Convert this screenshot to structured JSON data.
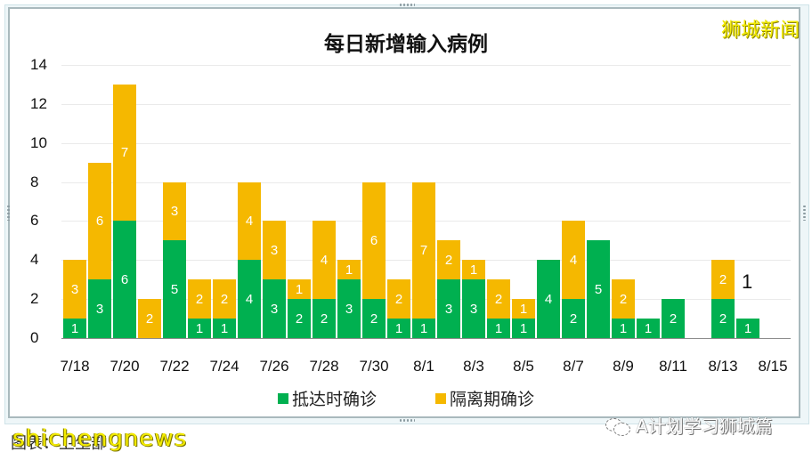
{
  "title": "每日新增输入病例",
  "brand_watermark": "狮城新闻",
  "caption": "图表：卫生部",
  "watermark_en": "shichengnews",
  "watermark_wechat": "A计划学习狮城篇",
  "legend": [
    {
      "label": "抵达时确诊",
      "color": "#00b050"
    },
    {
      "label": "隔离期确诊",
      "color": "#f5b800"
    }
  ],
  "colors": {
    "green": "#00b050",
    "yellow": "#f5b800"
  },
  "chart_data": {
    "type": "bar",
    "stacked": true,
    "title": "每日新增输入病例",
    "xlabel": "",
    "ylabel": "",
    "ylim": [
      0,
      14
    ],
    "yticks": [
      0,
      2,
      4,
      6,
      8,
      10,
      12,
      14
    ],
    "grid": true,
    "legend_position": "bottom",
    "categories": [
      "7/18",
      "7/19",
      "7/20",
      "7/21",
      "7/22",
      "7/23",
      "7/24",
      "7/25",
      "7/26",
      "7/27",
      "7/28",
      "7/29",
      "7/30",
      "7/31",
      "8/1",
      "8/2",
      "8/3",
      "8/4",
      "8/5",
      "8/6",
      "8/7",
      "8/8",
      "8/9",
      "8/10",
      "8/11",
      "8/12",
      "8/13",
      "8/14",
      "8/15"
    ],
    "xtick_labels": [
      "7/18",
      "7/20",
      "7/22",
      "7/24",
      "7/26",
      "7/28",
      "7/30",
      "8/1",
      "8/3",
      "8/5",
      "8/7",
      "8/9",
      "8/11",
      "8/13",
      "8/15"
    ],
    "series": [
      {
        "name": "抵达时确诊",
        "color": "#00b050",
        "values": [
          1,
          3,
          6,
          0,
          5,
          1,
          1,
          4,
          3,
          2,
          2,
          3,
          2,
          1,
          1,
          3,
          3,
          1,
          1,
          4,
          2,
          5,
          1,
          1,
          2,
          0,
          2,
          1,
          0
        ]
      },
      {
        "name": "隔离期确诊",
        "color": "#f5b800",
        "values": [
          3,
          6,
          7,
          2,
          3,
          2,
          2,
          4,
          3,
          1,
          4,
          1,
          6,
          2,
          7,
          2,
          1,
          2,
          1,
          0,
          4,
          0,
          2,
          0,
          0,
          0,
          2,
          0,
          0
        ]
      }
    ],
    "annotations": [
      {
        "category": "8/14",
        "text": "1"
      }
    ]
  }
}
